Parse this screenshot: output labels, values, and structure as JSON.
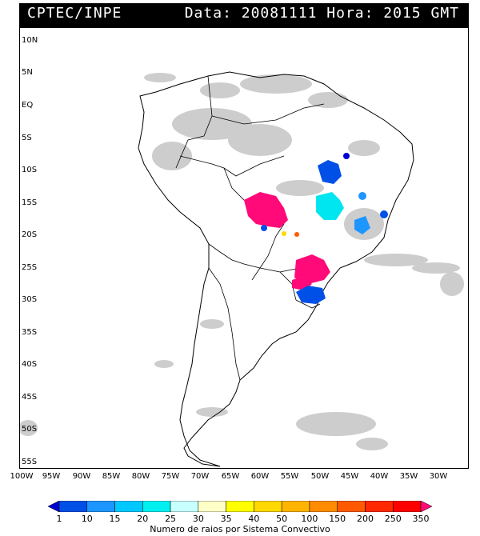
{
  "header": {
    "source": "CPTEC/INPE",
    "datetime": "Data: 20081111 Hora: 2015 GMT"
  },
  "axes": {
    "latitudes": [
      "10N",
      "5N",
      "EQ",
      "5S",
      "10S",
      "15S",
      "20S",
      "25S",
      "30S",
      "35S",
      "40S",
      "45S",
      "50S",
      "55S"
    ],
    "longitudes": [
      "100W",
      "95W",
      "90W",
      "85W",
      "80W",
      "75W",
      "70W",
      "65W",
      "60W",
      "55W",
      "50W",
      "45W",
      "40W",
      "35W",
      "30W"
    ]
  },
  "colorbar": {
    "title": "Numero de raios por Sistema Convectivo",
    "labels": [
      "1",
      "10",
      "15",
      "20",
      "25",
      "30",
      "35",
      "40",
      "50",
      "100",
      "150",
      "200",
      "250",
      "350"
    ],
    "colors": [
      "#0000d0",
      "#0050e8",
      "#1e96ff",
      "#00c8ff",
      "#00f0f0",
      "#c8ffff",
      "#ffffc8",
      "#ffff00",
      "#ffd800",
      "#ffb400",
      "#ff8c00",
      "#ff5a00",
      "#ff2800",
      "#ff0000",
      "#ff0a78"
    ]
  },
  "map": {
    "region": "South America",
    "cloud_color": "#c8c8c8",
    "coast_color": "#000000",
    "lightning_cells": [
      {
        "name": "mato-grosso-cluster",
        "color": "#ff0a78"
      },
      {
        "name": "parana-cluster",
        "color": "#ff0a78"
      },
      {
        "name": "central-brazil-cluster",
        "color": "#00e6f0"
      },
      {
        "name": "bahia-cluster",
        "color": "#0050e8"
      },
      {
        "name": "rio-grande-do-sul-cluster",
        "color": "#0050e8"
      },
      {
        "name": "minas-cluster",
        "color": "#1e96ff"
      }
    ]
  }
}
